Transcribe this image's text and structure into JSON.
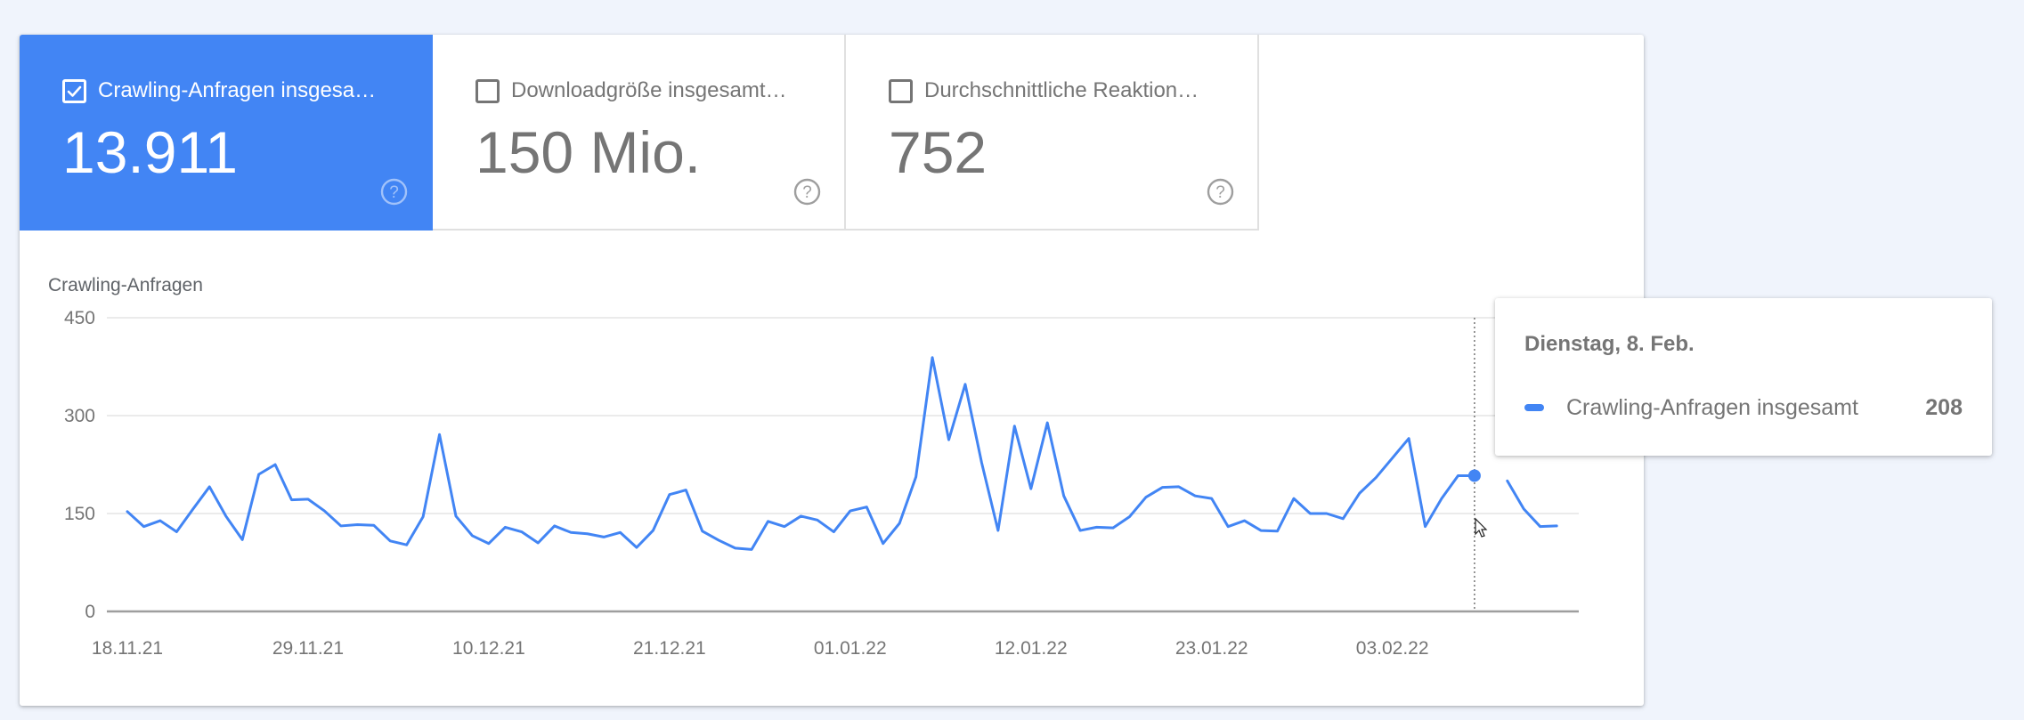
{
  "tiles": [
    {
      "label": "Crawling-Anfragen insgesa…",
      "value": "13.911",
      "checked": true
    },
    {
      "label": "Downloadgröße insgesamt…",
      "value": "150 Mio.",
      "checked": false
    },
    {
      "label": "Durchschnittliche Reaktion…",
      "value": "752",
      "checked": false
    }
  ],
  "colors": {
    "accent": "#4285f4",
    "text_muted": "#757575",
    "grid": "#ebebeb",
    "axis": "#9e9e9e",
    "background": "#f0f4fc"
  },
  "tooltip": {
    "date": "Dienstag, 8. Feb.",
    "series_name": "Crawling-Anfragen insgesamt",
    "value": "208"
  },
  "chart_data": {
    "type": "line",
    "title": "Crawling-Anfragen",
    "xlabel": "",
    "ylabel": "Crawling-Anfragen",
    "ylim": [
      0,
      450
    ],
    "yticks": [
      0,
      150,
      300,
      450
    ],
    "xtick_labels": [
      "18.11.21",
      "29.11.21",
      "10.12.21",
      "21.12.21",
      "01.01.22",
      "12.01.22",
      "23.01.22",
      "03.02.22"
    ],
    "xtick_indices": [
      0,
      11,
      22,
      33,
      44,
      55,
      66,
      77
    ],
    "grid": true,
    "legend": "none (tooltip shows series)",
    "start_date": "18.11.21",
    "hover_index": 82,
    "series": [
      {
        "name": "Crawling-Anfragen insgesamt",
        "color": "#4285f4",
        "values": [
          153,
          130,
          139,
          122,
          157,
          191,
          146,
          110,
          210,
          225,
          171,
          172,
          154,
          131,
          133,
          132,
          108,
          102,
          145,
          271,
          146,
          116,
          104,
          129,
          122,
          105,
          131,
          121,
          119,
          114,
          121,
          98,
          124,
          179,
          186,
          123,
          109,
          97,
          95,
          138,
          130,
          146,
          140,
          122,
          154,
          160,
          104,
          135,
          206,
          389,
          263,
          348,
          228,
          124,
          284,
          188,
          289,
          177,
          124,
          129,
          128,
          145,
          175,
          190,
          191,
          177,
          173,
          130,
          139,
          124,
          123,
          173,
          150,
          150,
          142,
          181,
          205,
          235,
          265,
          130,
          173,
          208,
          208,
          null,
          200,
          157,
          130,
          131
        ]
      }
    ]
  }
}
